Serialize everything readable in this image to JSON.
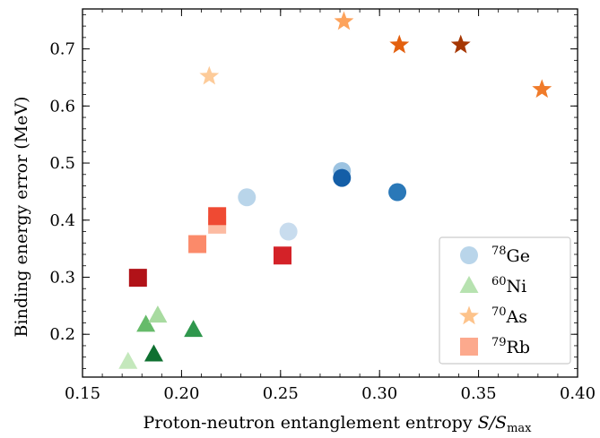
{
  "chart_data": {
    "type": "scatter",
    "xlabel_text": "Proton-neutron entanglement entropy ",
    "xlabel_math": "S/S",
    "xlabel_sub": "max",
    "ylabel": "Binding energy error (MeV)",
    "xlim": [
      0.15,
      0.4
    ],
    "ylim": [
      0.125,
      0.77
    ],
    "xticks": [
      0.15,
      0.2,
      0.25,
      0.3,
      0.35,
      0.4
    ],
    "xtick_labels": [
      "0.15",
      "0.20",
      "0.25",
      "0.30",
      "0.35",
      "0.40"
    ],
    "yticks": [
      0.2,
      0.3,
      0.4,
      0.5,
      0.6,
      0.7
    ],
    "ytick_labels": [
      "0.2",
      "0.3",
      "0.4",
      "0.5",
      "0.6",
      "0.7"
    ],
    "grid": false,
    "legend_position": "lower-right",
    "series": [
      {
        "name": "Ge",
        "mass": "78",
        "marker": "circle",
        "legend_color": "#b9d5ea",
        "points": [
          {
            "x": 0.233,
            "y": 0.44,
            "color": "#b9d5ea"
          },
          {
            "x": 0.254,
            "y": 0.38,
            "color": "#c8dcee"
          },
          {
            "x": 0.281,
            "y": 0.486,
            "color": "#9cc3e1"
          },
          {
            "x": 0.281,
            "y": 0.474,
            "color": "#145ea7"
          },
          {
            "x": 0.309,
            "y": 0.449,
            "color": "#2a78b8"
          }
        ]
      },
      {
        "name": "Ni",
        "mass": "60",
        "marker": "triangle",
        "legend_color": "#b7e2b0",
        "points": [
          {
            "x": 0.173,
            "y": 0.152,
            "color": "#c4e8bc"
          },
          {
            "x": 0.182,
            "y": 0.217,
            "color": "#66bb6a"
          },
          {
            "x": 0.188,
            "y": 0.233,
            "color": "#a8dba0"
          },
          {
            "x": 0.186,
            "y": 0.165,
            "color": "#0f7031"
          },
          {
            "x": 0.206,
            "y": 0.208,
            "color": "#2f974d"
          }
        ]
      },
      {
        "name": "As",
        "mass": "70",
        "marker": "star",
        "legend_color": "#fdc38b",
        "points": [
          {
            "x": 0.214,
            "y": 0.652,
            "color": "#fdcb99"
          },
          {
            "x": 0.282,
            "y": 0.748,
            "color": "#fda35c"
          },
          {
            "x": 0.31,
            "y": 0.707,
            "color": "#e3600f"
          },
          {
            "x": 0.341,
            "y": 0.707,
            "color": "#a63703"
          },
          {
            "x": 0.382,
            "y": 0.629,
            "color": "#f07b2a"
          }
        ]
      },
      {
        "name": "Rb",
        "mass": "79",
        "marker": "square",
        "legend_color": "#fca98d",
        "points": [
          {
            "x": 0.178,
            "y": 0.299,
            "color": "#b11218"
          },
          {
            "x": 0.208,
            "y": 0.358,
            "color": "#fb8a6a"
          },
          {
            "x": 0.218,
            "y": 0.392,
            "color": "#fcbba2"
          },
          {
            "x": 0.218,
            "y": 0.407,
            "color": "#ef4a33"
          },
          {
            "x": 0.251,
            "y": 0.338,
            "color": "#d42228"
          }
        ]
      }
    ]
  }
}
